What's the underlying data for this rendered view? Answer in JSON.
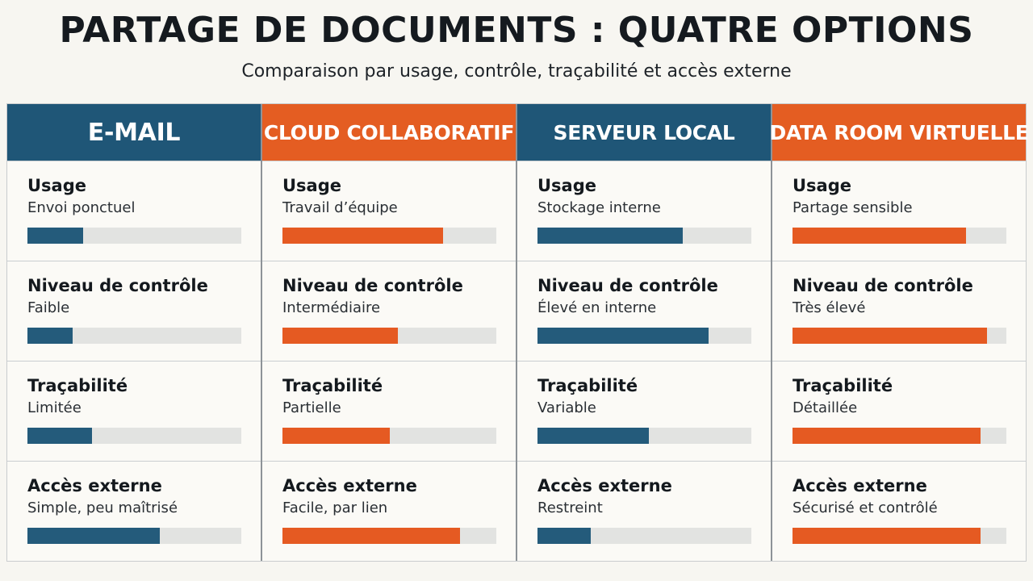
{
  "title": "PARTAGE DE DOCUMENTS : QUATRE OPTIONS",
  "subtitle": "Comparaison par usage, contrôle, traçabilité et accès externe",
  "colors": {
    "blue": "#1f5677",
    "orange": "#e45d22",
    "track": "#e2e3e1",
    "background": "#f7f6f1"
  },
  "chart_data": {
    "type": "bar",
    "title": "PARTAGE DE DOCUMENTS : QUATRE OPTIONS",
    "subtitle": "Comparaison par usage, contrôle, traçabilité et accès externe",
    "categories": [
      "Usage",
      "Niveau de contrôle",
      "Traçabilité",
      "Accès externe"
    ],
    "orientation": "horizontal",
    "scale": [
      0,
      1
    ],
    "columns": [
      {
        "name": "E-MAIL",
        "color": "blue",
        "rows": [
          {
            "criterion": "Usage",
            "label": "Envoi ponctuel",
            "value": 0.26
          },
          {
            "criterion": "Niveau de contrôle",
            "label": "Faible",
            "value": 0.21
          },
          {
            "criterion": "Traçabilité",
            "label": "Limitée",
            "value": 0.3
          },
          {
            "criterion": "Accès externe",
            "label": "Simple, peu maîtrisé",
            "value": 0.62
          }
        ]
      },
      {
        "name": "CLOUD COLLABORATIF",
        "color": "orange",
        "rows": [
          {
            "criterion": "Usage",
            "label": "Travail d’équipe",
            "value": 0.75
          },
          {
            "criterion": "Niveau de contrôle",
            "label": "Intermédiaire",
            "value": 0.54
          },
          {
            "criterion": "Traçabilité",
            "label": "Partielle",
            "value": 0.5
          },
          {
            "criterion": "Accès externe",
            "label": "Facile, par lien",
            "value": 0.83
          }
        ]
      },
      {
        "name": "SERVEUR LOCAL",
        "color": "blue",
        "rows": [
          {
            "criterion": "Usage",
            "label": "Stockage interne",
            "value": 0.68
          },
          {
            "criterion": "Niveau de contrôle",
            "label": "Élevé en interne",
            "value": 0.8
          },
          {
            "criterion": "Traçabilité",
            "label": "Variable",
            "value": 0.52
          },
          {
            "criterion": "Accès externe",
            "label": "Restreint",
            "value": 0.25
          }
        ]
      },
      {
        "name": "DATA ROOM VIRTUELLE",
        "color": "orange",
        "rows": [
          {
            "criterion": "Usage",
            "label": "Partage sensible",
            "value": 0.81
          },
          {
            "criterion": "Niveau de contrôle",
            "label": "Très élevé",
            "value": 0.91
          },
          {
            "criterion": "Traçabilité",
            "label": "Détaillée",
            "value": 0.88
          },
          {
            "criterion": "Accès externe",
            "label": "Sécurisé et contrôlé",
            "value": 0.88
          }
        ]
      }
    ]
  }
}
